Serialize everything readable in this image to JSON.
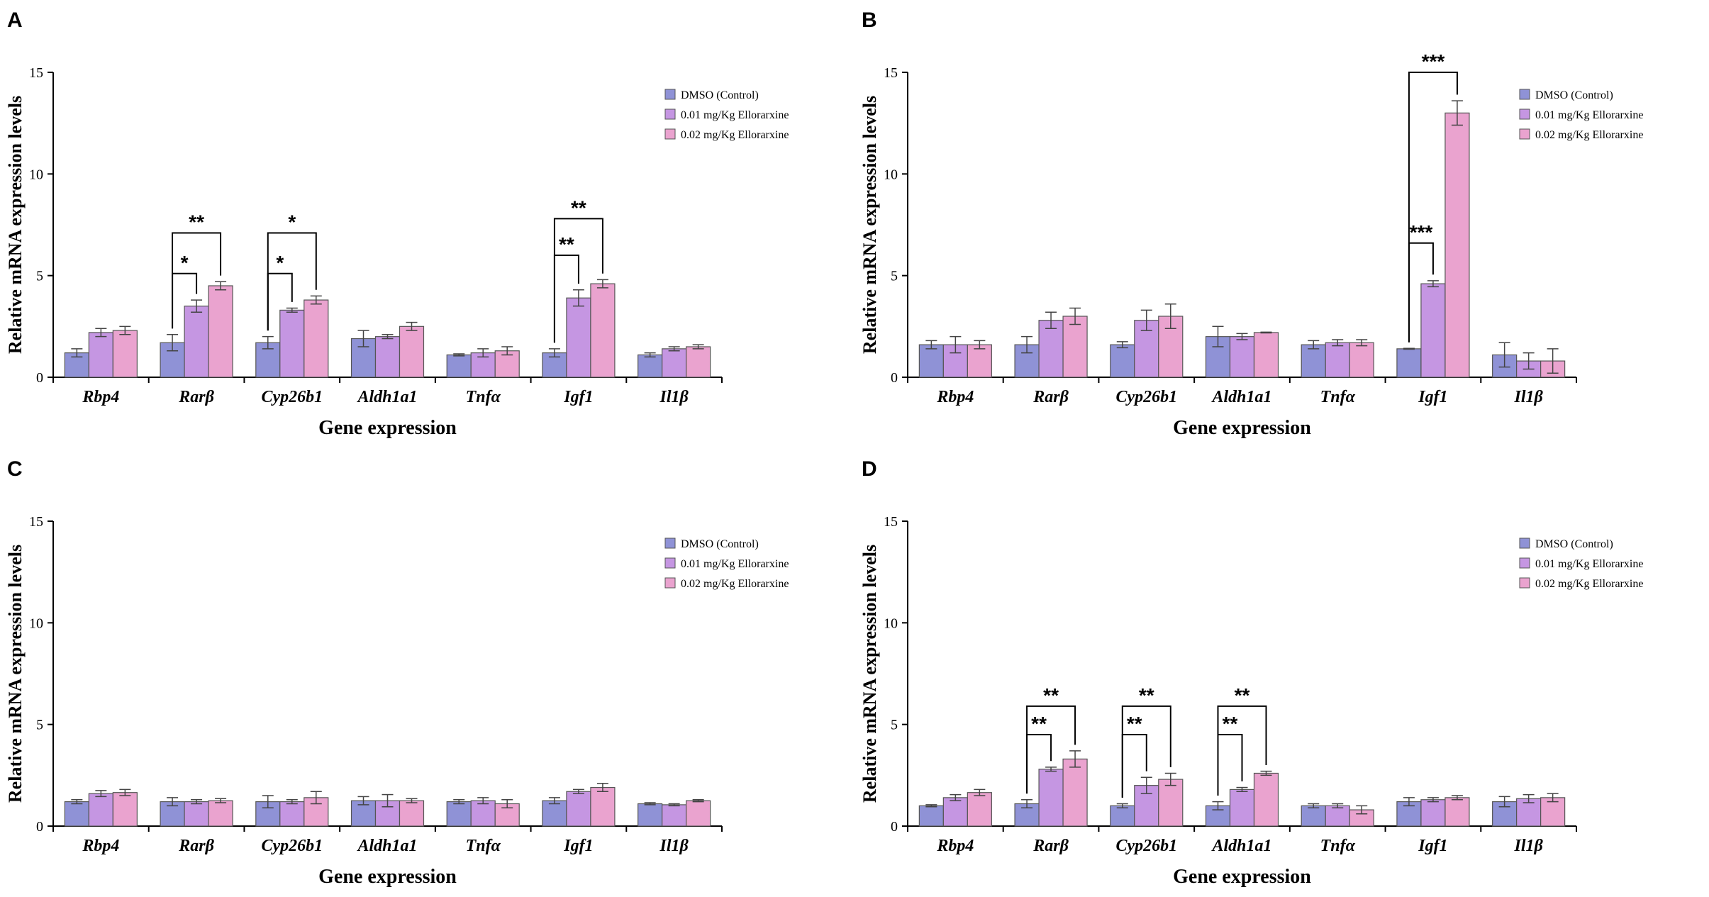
{
  "colors": {
    "control": "#8f92d6",
    "dose_low": "#c596e2",
    "dose_high": "#eaa3cf",
    "stroke": "#555555"
  },
  "chart_data": [
    {
      "panel_label": "A",
      "type": "bar",
      "ylabel": "Relative mRNA expression levels",
      "xlabel": "Gene expression",
      "ylim": [
        0,
        15
      ],
      "yticks": [
        "0",
        "5",
        "10",
        "15"
      ],
      "categories": [
        "Rbp4",
        "Rarβ",
        "Cyp26b1",
        "Aldh1a1",
        "Tnfα",
        "Igf1",
        "Il1β"
      ],
      "legend": [
        "DMSO (Control)",
        "0.01 mg/Kg  Ellorarxine",
        "0.02 mg/Kg  Ellorarxine"
      ],
      "series": [
        {
          "name": "DMSO (Control)",
          "values": [
            1.2,
            1.7,
            1.7,
            1.9,
            1.1,
            1.2,
            1.1
          ],
          "errors": [
            0.2,
            0.4,
            0.3,
            0.4,
            0.05,
            0.2,
            0.1
          ]
        },
        {
          "name": "0.01 mg/Kg Ellorarxine",
          "values": [
            2.2,
            3.5,
            3.3,
            2.0,
            1.2,
            3.9,
            1.4
          ],
          "errors": [
            0.2,
            0.3,
            0.1,
            0.1,
            0.2,
            0.4,
            0.1
          ]
        },
        {
          "name": "0.02 mg/Kg Ellorarxine",
          "values": [
            2.3,
            4.5,
            3.8,
            2.5,
            1.3,
            4.6,
            1.5
          ],
          "errors": [
            0.2,
            0.2,
            0.2,
            0.2,
            0.2,
            0.2,
            0.1
          ]
        }
      ],
      "significance": [
        {
          "category": 1,
          "from": 0,
          "to": 1,
          "label": "*",
          "y": 5.1
        },
        {
          "category": 1,
          "from": 0,
          "to": 2,
          "label": "**",
          "y": 7.1
        },
        {
          "category": 2,
          "from": 0,
          "to": 1,
          "label": "*",
          "y": 5.1
        },
        {
          "category": 2,
          "from": 0,
          "to": 2,
          "label": "*",
          "y": 7.1
        },
        {
          "category": 5,
          "from": 0,
          "to": 1,
          "label": "**",
          "y": 6.0
        },
        {
          "category": 5,
          "from": 0,
          "to": 2,
          "label": "**",
          "y": 7.8
        }
      ]
    },
    {
      "panel_label": "B",
      "type": "bar",
      "ylabel": "Relative mRNA expression levels",
      "xlabel": "Gene expression",
      "ylim": [
        0,
        15
      ],
      "yticks": [
        "0",
        "5",
        "10",
        "15"
      ],
      "categories": [
        "Rbp4",
        "Rarβ",
        "Cyp26b1",
        "Aldh1a1",
        "Tnfα",
        "Igf1",
        "Il1β"
      ],
      "legend": [
        "DMSO (Control)",
        "0.01 mg/Kg  Ellorarxine",
        "0.02 mg/Kg  Ellorarxine"
      ],
      "series": [
        {
          "name": "DMSO (Control)",
          "values": [
            1.6,
            1.6,
            1.6,
            2.0,
            1.6,
            1.4,
            1.1
          ],
          "errors": [
            0.2,
            0.4,
            0.15,
            0.5,
            0.2,
            0.02,
            0.6
          ]
        },
        {
          "name": "0.01 mg/Kg Ellorarxine",
          "values": [
            1.6,
            2.8,
            2.8,
            2.0,
            1.7,
            4.6,
            0.8
          ],
          "errors": [
            0.4,
            0.4,
            0.5,
            0.15,
            0.15,
            0.15,
            0.4
          ]
        },
        {
          "name": "0.02 mg/Kg Ellorarxine",
          "values": [
            1.6,
            3.0,
            3.0,
            2.2,
            1.7,
            13.0,
            0.8
          ],
          "errors": [
            0.2,
            0.4,
            0.6,
            0.02,
            0.15,
            0.6,
            0.6
          ]
        }
      ],
      "significance": [
        {
          "category": 5,
          "from": 0,
          "to": 1,
          "label": "***",
          "y": 6.6
        },
        {
          "category": 5,
          "from": 0,
          "to": 2,
          "label": "***",
          "y": 15.0
        }
      ]
    },
    {
      "panel_label": "C",
      "type": "bar",
      "ylabel": "Relative mRNA expression levels",
      "xlabel": "Gene expression",
      "ylim": [
        0,
        15
      ],
      "yticks": [
        "0",
        "5",
        "10",
        "15"
      ],
      "categories": [
        "Rbp4",
        "Rarβ",
        "Cyp26b1",
        "Aldh1a1",
        "Tnfα",
        "Igf1",
        "Il1β"
      ],
      "legend": [
        "DMSO (Control)",
        "0.01 mg/Kg  Ellorarxine",
        "0.02 mg/Kg  Ellorarxine"
      ],
      "series": [
        {
          "name": "DMSO (Control)",
          "values": [
            1.2,
            1.2,
            1.2,
            1.25,
            1.2,
            1.25,
            1.1
          ],
          "errors": [
            0.1,
            0.2,
            0.3,
            0.2,
            0.1,
            0.15,
            0.05
          ]
        },
        {
          "name": "0.01 mg/Kg Ellorarxine",
          "values": [
            1.6,
            1.2,
            1.2,
            1.25,
            1.25,
            1.7,
            1.05
          ],
          "errors": [
            0.15,
            0.1,
            0.1,
            0.3,
            0.15,
            0.1,
            0.05
          ]
        },
        {
          "name": "0.02 mg/Kg Ellorarxine",
          "values": [
            1.65,
            1.25,
            1.4,
            1.25,
            1.1,
            1.9,
            1.25
          ],
          "errors": [
            0.15,
            0.1,
            0.3,
            0.1,
            0.2,
            0.2,
            0.05
          ]
        }
      ],
      "significance": []
    },
    {
      "panel_label": "D",
      "type": "bar",
      "ylabel": "Relative mRNA expression levels",
      "xlabel": "Gene expression",
      "ylim": [
        0,
        15
      ],
      "yticks": [
        "0",
        "5",
        "10",
        "15"
      ],
      "categories": [
        "Rbp4",
        "Rarβ",
        "Cyp26b1",
        "Aldh1a1",
        "Tnfα",
        "Igf1",
        "Il1β"
      ],
      "legend": [
        "DMSO (Control)",
        "0.01 mg/Kg  Ellorarxine",
        "0.02 mg/Kg  Ellorarxine"
      ],
      "series": [
        {
          "name": "DMSO (Control)",
          "values": [
            1.0,
            1.1,
            1.0,
            1.0,
            1.0,
            1.2,
            1.2
          ],
          "errors": [
            0.05,
            0.2,
            0.1,
            0.2,
            0.1,
            0.2,
            0.25
          ]
        },
        {
          "name": "0.01 mg/Kg Ellorarxine",
          "values": [
            1.4,
            2.8,
            2.0,
            1.8,
            1.0,
            1.3,
            1.35
          ],
          "errors": [
            0.15,
            0.1,
            0.4,
            0.1,
            0.1,
            0.1,
            0.2
          ]
        },
        {
          "name": "0.02 mg/Kg Ellorarxine",
          "values": [
            1.65,
            3.3,
            2.3,
            2.6,
            0.8,
            1.4,
            1.4
          ],
          "errors": [
            0.15,
            0.4,
            0.3,
            0.1,
            0.2,
            0.1,
            0.2
          ]
        }
      ],
      "significance": [
        {
          "category": 1,
          "from": 0,
          "to": 1,
          "label": "**",
          "y": 4.5
        },
        {
          "category": 1,
          "from": 0,
          "to": 2,
          "label": "**",
          "y": 5.9
        },
        {
          "category": 2,
          "from": 0,
          "to": 1,
          "label": "**",
          "y": 4.5
        },
        {
          "category": 2,
          "from": 0,
          "to": 2,
          "label": "**",
          "y": 5.9
        },
        {
          "category": 3,
          "from": 0,
          "to": 1,
          "label": "**",
          "y": 4.5
        },
        {
          "category": 3,
          "from": 0,
          "to": 2,
          "label": "**",
          "y": 5.9
        }
      ]
    }
  ]
}
